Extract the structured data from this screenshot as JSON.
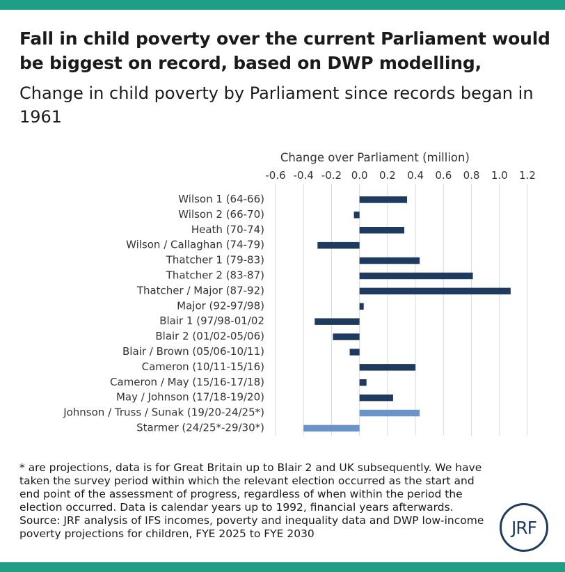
{
  "colors": {
    "accent_band": "#1e9e84",
    "bar_actual": "#1f3a5f",
    "bar_projection": "#6a93c8",
    "grid": "#d9d9d9"
  },
  "title": "Fall in child poverty over the current Parliament would be biggest on record, based on DWP modelling,",
  "subtitle": "Change in child poverty by Parliament since records began in 1961",
  "notes": {
    "projections": "* are projections, data is for Great Britain up to Blair 2 and UK subsequently. We have taken the survey period within which the relevant election occurred as the start and end point of the assessment of progress, regardless of when within the period the election occurred. Data is calendar years up to 1992, financial years afterwards.",
    "source": "Source: JRF analysis of IFS incomes, poverty and inequality data and DWP low-income poverty projections for children, FYE 2025 to FYE 2030"
  },
  "logo": "JRF",
  "chart_data": {
    "type": "bar",
    "orientation": "horizontal",
    "xlabel": "Change over Parliament (million)",
    "xlim": [
      -0.6,
      1.2
    ],
    "xticks": [
      "-0.6",
      "-0.4",
      "-0.2",
      "0.0",
      "0.2",
      "0.4",
      "0.6",
      "0.8",
      "1.0",
      "1.2"
    ],
    "grid": true,
    "axis_position": "top",
    "categories": [
      "Wilson 1 (64-66)",
      "Wilson 2 (66-70)",
      "Heath (70-74)",
      "Wilson / Callaghan (74-79)",
      "Thatcher 1 (79-83)",
      "Thatcher 2 (83-87)",
      "Thatcher / Major (87-92)",
      "Major (92-97/98)",
      "Blair 1 (97/98-01/02",
      "Blair 2 (01/02-05/06)",
      "Blair / Brown (05/06-10/11)",
      "Cameron (10/11-15/16)",
      "Cameron / May (15/16-17/18)",
      "May / Johnson (17/18-19/20)",
      "Johnson / Truss / Sunak (19/20-24/25*)",
      "Starmer (24/25*-29/30*)"
    ],
    "values": [
      0.34,
      -0.04,
      0.32,
      -0.3,
      0.43,
      0.81,
      1.08,
      0.03,
      -0.32,
      -0.19,
      -0.07,
      0.4,
      0.05,
      0.24,
      0.43,
      -0.4
    ],
    "projection": [
      false,
      false,
      false,
      false,
      false,
      false,
      false,
      false,
      false,
      false,
      false,
      false,
      false,
      false,
      true,
      true
    ]
  }
}
